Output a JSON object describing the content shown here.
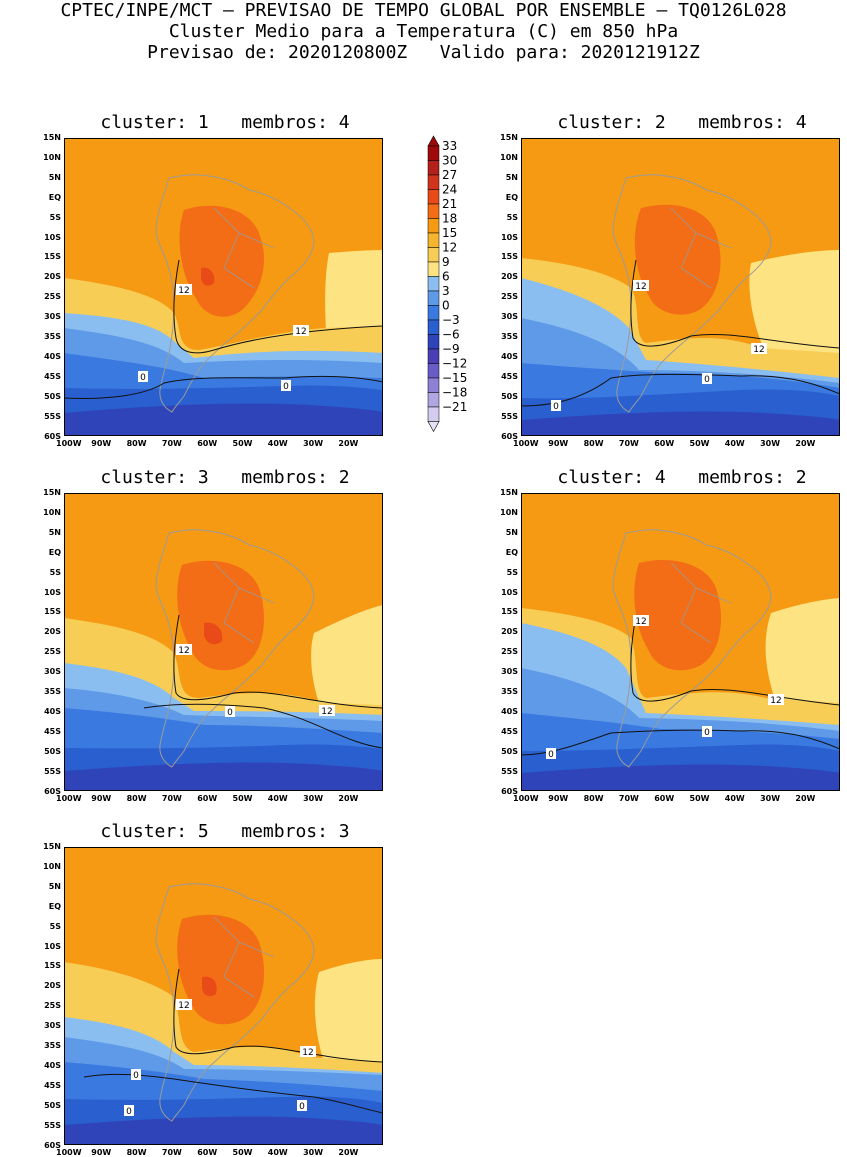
{
  "header": {
    "line1": "CPTEC/INPE/MCT – PREVISAO DE TEMPO GLOBAL POR ENSEMBLE – TQ0126L028",
    "line2": "Cluster Medio para a Temperatura (C) em 850 hPa",
    "line3": "Previsao de: 2020120800Z   Valido para: 2020121912Z"
  },
  "axes": {
    "lat_labels": [
      "15N",
      "10N",
      "5N",
      "EQ",
      "5S",
      "10S",
      "15S",
      "20S",
      "25S",
      "30S",
      "35S",
      "40S",
      "45S",
      "50S",
      "55S",
      "60S"
    ],
    "lon_labels": [
      "100W",
      "90W",
      "80W",
      "70W",
      "60W",
      "50W",
      "40W",
      "30W",
      "20W"
    ]
  },
  "colorbar": {
    "labels": [
      "33",
      "30",
      "27",
      "24",
      "21",
      "18",
      "15",
      "12",
      "9",
      "6",
      "3",
      "0",
      "−3",
      "−6",
      "−9",
      "−12",
      "−15",
      "−18",
      "−21"
    ],
    "colors": [
      "#9e0a0a",
      "#b4211a",
      "#d0341d",
      "#e84a18",
      "#f36d16",
      "#f59a12",
      "#f6b52f",
      "#f8cd55",
      "#fde381",
      "#8bbef0",
      "#5f9ae8",
      "#3a7ae0",
      "#2a5fd0",
      "#2e44b8",
      "#4a3fb5",
      "#6a5cc6",
      "#8d80d5",
      "#b1a6e2",
      "#d4ccef"
    ],
    "arrow_top_color": "#9e0a0a",
    "arrow_bottom_color": "#e6e1f6"
  },
  "panels": [
    {
      "title": "cluster: 1   membros: 4",
      "labels": [
        {
          "t": "12"
        },
        {
          "t": "12"
        },
        {
          "t": "0"
        },
        {
          "t": "0"
        }
      ]
    },
    {
      "title": "cluster: 2   membros: 4",
      "labels": [
        {
          "t": "12"
        },
        {
          "t": "12"
        },
        {
          "t": "0"
        },
        {
          "t": "0"
        }
      ]
    },
    {
      "title": "cluster: 3   membros: 2",
      "labels": [
        {
          "t": "12"
        },
        {
          "t": "12"
        },
        {
          "t": "0"
        }
      ]
    },
    {
      "title": "cluster: 4   membros: 2",
      "labels": [
        {
          "t": "12"
        },
        {
          "t": "12"
        },
        {
          "t": "0"
        },
        {
          "t": "0"
        }
      ]
    },
    {
      "title": "cluster: 5   membros: 3",
      "labels": [
        {
          "t": "12"
        },
        {
          "t": "12"
        },
        {
          "t": "0"
        },
        {
          "t": "0"
        },
        {
          "t": "0"
        }
      ]
    }
  ]
}
